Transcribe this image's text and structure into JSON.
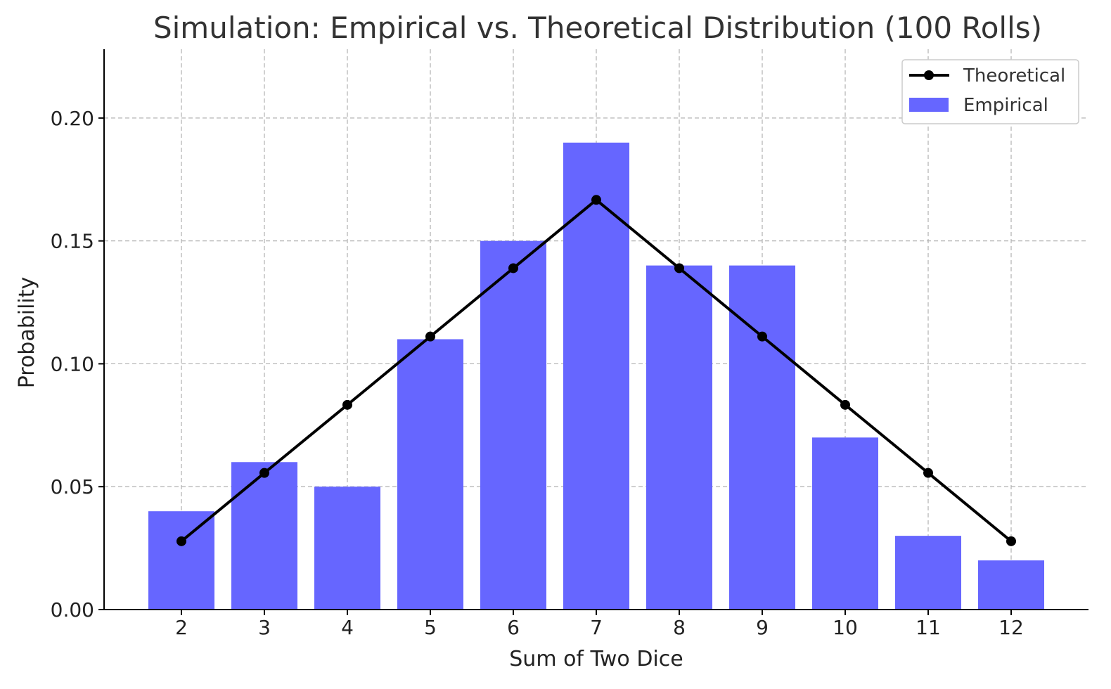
{
  "chart_data": {
    "type": "bar",
    "title": "Simulation: Empirical vs. Theoretical Distribution (100 Rolls)",
    "xlabel": "Sum of Two Dice",
    "ylabel": "Probability",
    "categories": [
      "2",
      "3",
      "4",
      "5",
      "6",
      "7",
      "8",
      "9",
      "10",
      "11",
      "12"
    ],
    "ylim": [
      0,
      0.228
    ],
    "yticks": [
      0.0,
      0.05,
      0.1,
      0.15,
      0.2
    ],
    "ytick_labels": [
      "0.00",
      "0.05",
      "0.10",
      "0.15",
      "0.20"
    ],
    "grid": true,
    "legend_position": "top-right",
    "series": [
      {
        "name": "Empirical",
        "kind": "bar",
        "color": "#6666ff",
        "values": [
          0.04,
          0.06,
          0.05,
          0.11,
          0.15,
          0.19,
          0.14,
          0.14,
          0.07,
          0.03,
          0.02
        ]
      },
      {
        "name": "Theoretical",
        "kind": "line",
        "color": "#000000",
        "marker": "circle",
        "values": [
          0.0278,
          0.0556,
          0.0833,
          0.1111,
          0.1389,
          0.1667,
          0.1389,
          0.1111,
          0.0833,
          0.0556,
          0.0278
        ]
      }
    ],
    "legend": [
      {
        "label": "Theoretical",
        "kind": "line",
        "color": "#000000"
      },
      {
        "label": "Empirical",
        "kind": "bar",
        "color": "#6666ff"
      }
    ]
  }
}
